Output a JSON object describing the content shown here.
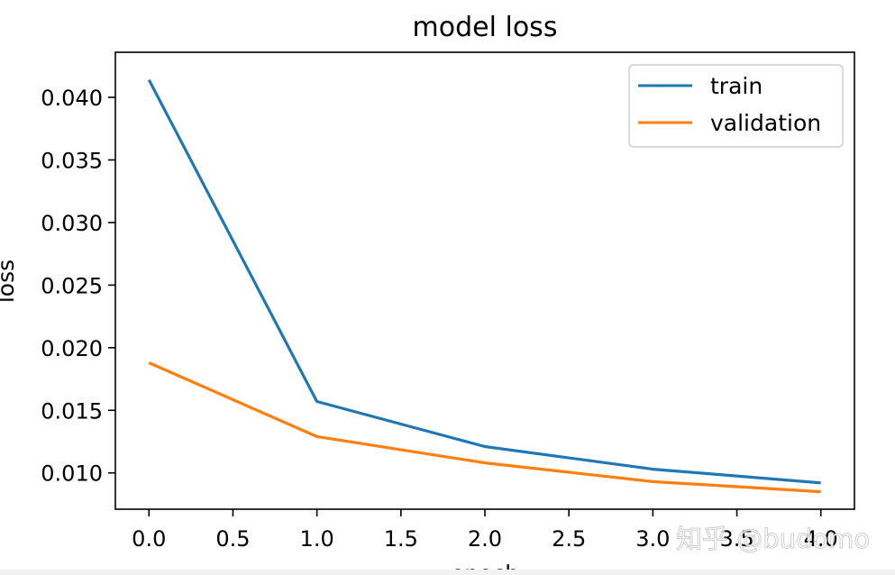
{
  "chart_data": {
    "type": "line",
    "title": "model loss",
    "xlabel": "epoch",
    "ylabel": "loss",
    "x": [
      0,
      1,
      2,
      3,
      4
    ],
    "xlim": [
      -0.2,
      4.2
    ],
    "ylim": [
      0.0071,
      0.0436
    ],
    "xticks": [
      0.0,
      0.5,
      1.0,
      1.5,
      2.0,
      2.5,
      3.0,
      3.5,
      4.0
    ],
    "xtick_labels": [
      "0.0",
      "0.5",
      "1.0",
      "1.5",
      "2.0",
      "2.5",
      "3.0",
      "3.5",
      "4.0"
    ],
    "yticks": [
      0.01,
      0.015,
      0.02,
      0.025,
      0.03,
      0.035,
      0.04
    ],
    "ytick_labels": [
      "0.010",
      "0.015",
      "0.020",
      "0.025",
      "0.030",
      "0.035",
      "0.040"
    ],
    "grid": false,
    "legend_position": "top-right",
    "series": [
      {
        "name": "train",
        "values": [
          0.0414,
          0.0157,
          0.0121,
          0.0103,
          0.0092
        ],
        "color": "#1f77b4"
      },
      {
        "name": "validation",
        "values": [
          0.0188,
          0.0129,
          0.0108,
          0.0093,
          0.0085
        ],
        "color": "#ff7f0e"
      }
    ]
  },
  "watermark": {
    "text": "知乎 @budomo"
  }
}
